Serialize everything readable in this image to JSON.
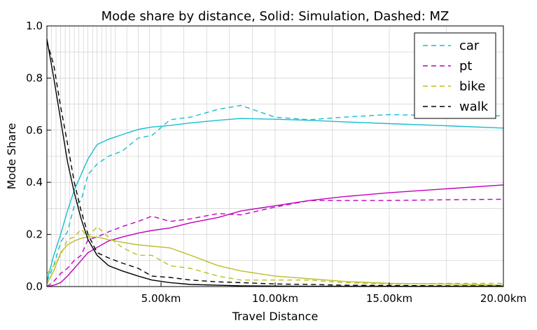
{
  "chart_data": {
    "type": "line",
    "title": "Mode share by distance, Solid: Simulation, Dashed: MZ",
    "xlabel": "Travel Distance",
    "ylabel": "Mode Share",
    "xlim": [
      0,
      20000
    ],
    "ylim": [
      0,
      1.0
    ],
    "xticks": [
      {
        "value": 5000,
        "label": "5.00km"
      },
      {
        "value": 10000,
        "label": "10.00km"
      },
      {
        "value": 15000,
        "label": "15.00km"
      },
      {
        "value": 20000,
        "label": "20.00km"
      }
    ],
    "yticks": [
      {
        "value": 0.0,
        "label": "0.0"
      },
      {
        "value": 0.2,
        "label": "0.2"
      },
      {
        "value": 0.4,
        "label": "0.4"
      },
      {
        "value": 0.6,
        "label": "0.6"
      },
      {
        "value": 0.8,
        "label": "0.8"
      },
      {
        "value": 1.0,
        "label": "1.0"
      }
    ],
    "grid": true,
    "legend_position": "top-right",
    "legend": [
      {
        "label": "car",
        "color": "#17becf"
      },
      {
        "label": "pt",
        "color": "#c000c0"
      },
      {
        "label": "bike",
        "color": "#bcbd22"
      },
      {
        "label": "walk",
        "color": "#000000"
      }
    ],
    "series": [
      {
        "mode": "car",
        "source": "Simulation",
        "style": "solid",
        "color": "#17becf",
        "x": [
          0,
          300,
          600,
          900,
          1200,
          1500,
          1800,
          2200,
          2700,
          3300,
          4000,
          4600,
          5400,
          6300,
          7500,
          8500,
          10000,
          11500,
          13000,
          15000,
          17500,
          20000
        ],
        "y": [
          0.02,
          0.12,
          0.2,
          0.29,
          0.37,
          0.43,
          0.49,
          0.545,
          0.565,
          0.583,
          0.603,
          0.612,
          0.618,
          0.628,
          0.638,
          0.645,
          0.642,
          0.638,
          0.632,
          0.625,
          0.617,
          0.608
        ]
      },
      {
        "mode": "car",
        "source": "MZ",
        "style": "dashed",
        "color": "#17becf",
        "x": [
          0,
          300,
          600,
          900,
          1200,
          1500,
          1800,
          2200,
          2700,
          3300,
          4000,
          4600,
          5400,
          6300,
          7500,
          8500,
          10000,
          11500,
          13000,
          15000,
          17500,
          20000
        ],
        "y": [
          0.02,
          0.08,
          0.17,
          0.21,
          0.31,
          0.33,
          0.43,
          0.47,
          0.5,
          0.52,
          0.57,
          0.58,
          0.64,
          0.65,
          0.68,
          0.695,
          0.65,
          0.64,
          0.65,
          0.66,
          0.655,
          0.655
        ]
      },
      {
        "mode": "pt",
        "source": "Simulation",
        "style": "solid",
        "color": "#c000c0",
        "x": [
          0,
          300,
          600,
          900,
          1200,
          1500,
          1800,
          2200,
          2700,
          3300,
          4000,
          4600,
          5400,
          6300,
          7500,
          8500,
          10000,
          11500,
          13000,
          15000,
          17500,
          20000
        ],
        "y": [
          0.0,
          0.005,
          0.015,
          0.04,
          0.07,
          0.1,
          0.13,
          0.15,
          0.175,
          0.19,
          0.205,
          0.215,
          0.225,
          0.245,
          0.265,
          0.29,
          0.31,
          0.33,
          0.345,
          0.36,
          0.375,
          0.39
        ]
      },
      {
        "mode": "pt",
        "source": "MZ",
        "style": "dashed",
        "color": "#c000c0",
        "x": [
          0,
          300,
          600,
          900,
          1200,
          1500,
          1800,
          2200,
          2700,
          3300,
          4000,
          4600,
          5400,
          6300,
          7500,
          8500,
          10000,
          11500,
          13000,
          15000,
          17500,
          20000
        ],
        "y": [
          0.0,
          0.02,
          0.05,
          0.07,
          0.1,
          0.12,
          0.18,
          0.19,
          0.21,
          0.23,
          0.25,
          0.27,
          0.25,
          0.26,
          0.28,
          0.275,
          0.305,
          0.33,
          0.33,
          0.33,
          0.333,
          0.335
        ]
      },
      {
        "mode": "bike",
        "source": "Simulation",
        "style": "solid",
        "color": "#bcbd22",
        "x": [
          0,
          300,
          600,
          900,
          1200,
          1500,
          1800,
          2200,
          2700,
          3300,
          4000,
          4600,
          5400,
          6300,
          7500,
          8500,
          10000,
          11500,
          13000,
          15000,
          17500,
          20000
        ],
        "y": [
          0.01,
          0.06,
          0.13,
          0.16,
          0.175,
          0.185,
          0.19,
          0.19,
          0.18,
          0.17,
          0.16,
          0.155,
          0.148,
          0.12,
          0.08,
          0.06,
          0.04,
          0.03,
          0.02,
          0.012,
          0.01,
          0.005
        ]
      },
      {
        "mode": "bike",
        "source": "MZ",
        "style": "dashed",
        "color": "#bcbd22",
        "x": [
          0,
          300,
          600,
          900,
          1200,
          1500,
          1800,
          2200,
          2700,
          3300,
          4000,
          4600,
          5400,
          6300,
          7500,
          8500,
          10000,
          11500,
          13000,
          15000,
          17500,
          20000
        ],
        "y": [
          0.05,
          0.08,
          0.12,
          0.18,
          0.19,
          0.22,
          0.19,
          0.23,
          0.19,
          0.15,
          0.12,
          0.12,
          0.08,
          0.07,
          0.04,
          0.025,
          0.025,
          0.025,
          0.015,
          0.01,
          0.012,
          0.012
        ]
      },
      {
        "mode": "walk",
        "source": "Simulation",
        "style": "solid",
        "color": "#000000",
        "x": [
          0,
          300,
          600,
          900,
          1200,
          1500,
          1800,
          2200,
          2700,
          3300,
          4000,
          4600,
          5400,
          6300,
          7500,
          8500,
          10000,
          11500,
          13000,
          15000,
          17500,
          20000
        ],
        "y": [
          0.95,
          0.8,
          0.64,
          0.48,
          0.36,
          0.26,
          0.18,
          0.12,
          0.08,
          0.06,
          0.04,
          0.025,
          0.015,
          0.008,
          0.005,
          0.003,
          0.002,
          0.001,
          0.001,
          0.001,
          0.001,
          0.001
        ]
      },
      {
        "mode": "walk",
        "source": "MZ",
        "style": "dashed",
        "color": "#000000",
        "x": [
          0,
          300,
          600,
          900,
          1200,
          1500,
          1800,
          2200,
          2700,
          3300,
          4000,
          4600,
          5400,
          6300,
          7500,
          8500,
          10000,
          11500,
          13000,
          15000,
          17500,
          20000
        ],
        "y": [
          0.94,
          0.85,
          0.69,
          0.55,
          0.4,
          0.29,
          0.2,
          0.13,
          0.11,
          0.09,
          0.07,
          0.04,
          0.035,
          0.025,
          0.018,
          0.015,
          0.01,
          0.008,
          0.005,
          0.004,
          0.003,
          0.003
        ]
      }
    ]
  }
}
